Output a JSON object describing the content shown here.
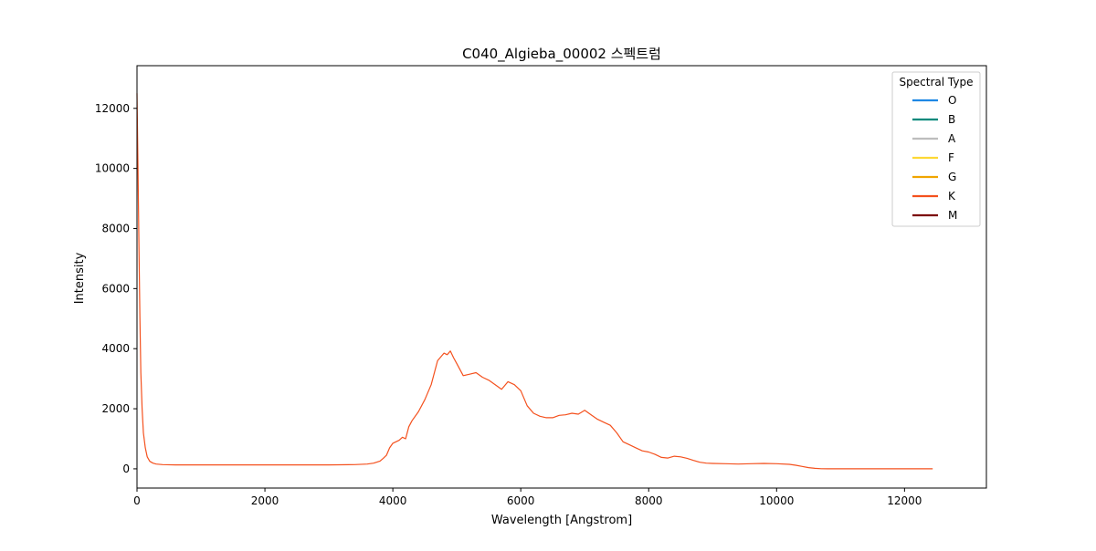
{
  "chart_data": {
    "type": "line",
    "title": "C040_Algieba_00002 스펙트럼",
    "xlabel": "Wavelength [Angstrom]",
    "ylabel": "Intensity",
    "xlim": [
      0,
      13280
    ],
    "ylim": [
      -640,
      13420
    ],
    "xticks": [
      0,
      2000,
      4000,
      6000,
      8000,
      10000,
      12000
    ],
    "yticks": [
      0,
      2000,
      4000,
      6000,
      8000,
      10000,
      12000
    ],
    "grid": false,
    "legend": {
      "title": "Spectral Type",
      "placement": "top-right",
      "entries": [
        {
          "label": "O",
          "color": "#1E88E5"
        },
        {
          "label": "B",
          "color": "#00897B"
        },
        {
          "label": "A",
          "color": "#BDBDBD"
        },
        {
          "label": "F",
          "color": "#FDD835"
        },
        {
          "label": "G",
          "color": "#F0A500"
        },
        {
          "label": "K",
          "color": "#F4511E"
        },
        {
          "label": "M",
          "color": "#7B0000"
        }
      ]
    },
    "series": [
      {
        "color": "#F4511E",
        "x": [
          0,
          15,
          30,
          45,
          60,
          80,
          100,
          130,
          160,
          200,
          250,
          300,
          400,
          600,
          1000,
          1500,
          2000,
          2500,
          3000,
          3400,
          3600,
          3700,
          3800,
          3850,
          3900,
          3950,
          4000,
          4100,
          4150,
          4200,
          4250,
          4300,
          4400,
          4500,
          4600,
          4700,
          4800,
          4850,
          4900,
          4950,
          5000,
          5100,
          5200,
          5300,
          5400,
          5500,
          5600,
          5700,
          5800,
          5900,
          6000,
          6100,
          6200,
          6300,
          6400,
          6500,
          6600,
          6700,
          6800,
          6900,
          7000,
          7100,
          7200,
          7300,
          7400,
          7500,
          7600,
          7700,
          7800,
          7900,
          8000,
          8100,
          8200,
          8300,
          8400,
          8500,
          8600,
          8700,
          8800,
          8900,
          9000,
          9200,
          9400,
          9600,
          9800,
          10000,
          10200,
          10300,
          10400,
          10500,
          10600,
          10700,
          10800,
          11000,
          11500,
          12000,
          12440
        ],
        "y": [
          12500,
          10000,
          7500,
          5000,
          3200,
          2000,
          1200,
          700,
          400,
          250,
          190,
          160,
          140,
          130,
          130,
          130,
          130,
          130,
          130,
          140,
          160,
          190,
          260,
          350,
          450,
          700,
          850,
          950,
          1050,
          1000,
          1400,
          1600,
          1900,
          2300,
          2800,
          3600,
          3850,
          3800,
          3920,
          3700,
          3500,
          3100,
          3150,
          3200,
          3050,
          2950,
          2800,
          2650,
          2900,
          2800,
          2600,
          2100,
          1850,
          1750,
          1700,
          1700,
          1780,
          1800,
          1850,
          1820,
          1950,
          1800,
          1650,
          1550,
          1450,
          1200,
          900,
          800,
          700,
          600,
          560,
          480,
          380,
          360,
          420,
          400,
          350,
          280,
          220,
          190,
          180,
          170,
          160,
          170,
          180,
          170,
          150,
          120,
          80,
          40,
          15,
          5,
          0,
          0,
          0,
          0,
          0
        ]
      }
    ]
  }
}
